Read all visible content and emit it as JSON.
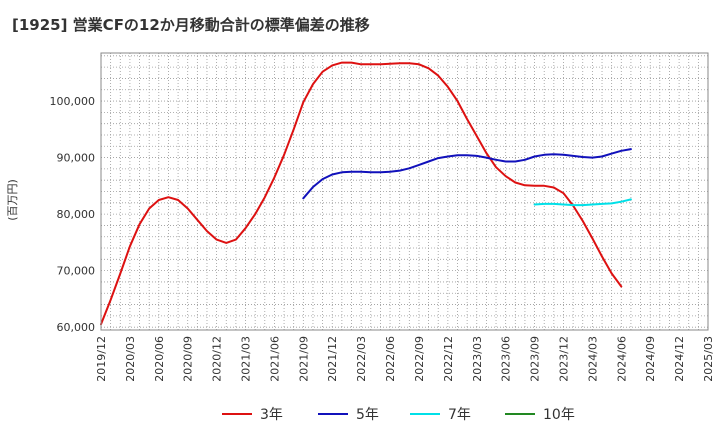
{
  "chart_data": {
    "type": "line",
    "title": "[1925]  営業CFの12か月移動合計の標準偏差の推移",
    "ylabel": "(百万円)",
    "xlabel": "",
    "ylim": [
      59500,
      108500
    ],
    "yticks": [
      60000,
      70000,
      80000,
      90000,
      100000
    ],
    "ytick_labels": [
      "60,000",
      "70,000",
      "80,000",
      "90,000",
      "100,000"
    ],
    "xticks": [
      "2019/12",
      "2020/03",
      "2020/06",
      "2020/09",
      "2020/12",
      "2021/03",
      "2021/06",
      "2021/09",
      "2021/12",
      "2022/03",
      "2022/06",
      "2022/09",
      "2022/12",
      "2023/03",
      "2023/06",
      "2023/09",
      "2023/12",
      "2024/03",
      "2024/06",
      "2024/09",
      "2024/12",
      "2025/03"
    ],
    "grid": true,
    "legend_position": "bottom",
    "series": [
      {
        "name": "3年",
        "color": "#dd1111",
        "values": [
          [
            0,
            60500
          ],
          [
            1,
            64800
          ],
          [
            2,
            69500
          ],
          [
            3,
            74300
          ],
          [
            4,
            78200
          ],
          [
            5,
            81000
          ],
          [
            6,
            82500
          ],
          [
            7,
            83000
          ],
          [
            8,
            82500
          ],
          [
            9,
            81000
          ],
          [
            10,
            79000
          ],
          [
            11,
            77000
          ],
          [
            12,
            75500
          ],
          [
            13,
            74900
          ],
          [
            14,
            75500
          ],
          [
            15,
            77500
          ],
          [
            16,
            80000
          ],
          [
            17,
            83000
          ],
          [
            18,
            86500
          ],
          [
            19,
            90500
          ],
          [
            20,
            95000
          ],
          [
            21,
            99800
          ],
          [
            22,
            103000
          ],
          [
            23,
            105200
          ],
          [
            24,
            106300
          ],
          [
            25,
            106800
          ],
          [
            26,
            106800
          ],
          [
            27,
            106500
          ],
          [
            28,
            106500
          ],
          [
            29,
            106500
          ],
          [
            30,
            106600
          ],
          [
            31,
            106700
          ],
          [
            32,
            106700
          ],
          [
            33,
            106500
          ],
          [
            34,
            105800
          ],
          [
            35,
            104500
          ],
          [
            36,
            102500
          ],
          [
            37,
            100000
          ],
          [
            38,
            96800
          ],
          [
            39,
            93800
          ],
          [
            40,
            90800
          ],
          [
            41,
            88300
          ],
          [
            42,
            86700
          ],
          [
            43,
            85600
          ],
          [
            44,
            85100
          ],
          [
            45,
            85000
          ],
          [
            46,
            85000
          ],
          [
            47,
            84700
          ],
          [
            48,
            83700
          ],
          [
            49,
            81500
          ],
          [
            50,
            78800
          ],
          [
            51,
            75700
          ],
          [
            52,
            72500
          ],
          [
            53,
            69500
          ],
          [
            54,
            67200
          ]
        ]
      },
      {
        "name": "5年",
        "color": "#1111bb",
        "values": [
          [
            21,
            82800
          ],
          [
            22,
            84800
          ],
          [
            23,
            86200
          ],
          [
            24,
            87000
          ],
          [
            25,
            87400
          ],
          [
            26,
            87500
          ],
          [
            27,
            87500
          ],
          [
            28,
            87400
          ],
          [
            29,
            87400
          ],
          [
            30,
            87500
          ],
          [
            31,
            87700
          ],
          [
            32,
            88100
          ],
          [
            33,
            88700
          ],
          [
            34,
            89300
          ],
          [
            35,
            89900
          ],
          [
            36,
            90200
          ],
          [
            37,
            90400
          ],
          [
            38,
            90400
          ],
          [
            39,
            90300
          ],
          [
            40,
            90000
          ],
          [
            41,
            89600
          ],
          [
            42,
            89300
          ],
          [
            43,
            89300
          ],
          [
            44,
            89600
          ],
          [
            45,
            90200
          ],
          [
            46,
            90500
          ],
          [
            47,
            90600
          ],
          [
            48,
            90500
          ],
          [
            49,
            90300
          ],
          [
            50,
            90100
          ],
          [
            51,
            90000
          ],
          [
            52,
            90200
          ],
          [
            53,
            90700
          ],
          [
            54,
            91200
          ],
          [
            55,
            91500
          ]
        ]
      },
      {
        "name": "7年",
        "color": "#00e0e8",
        "values": [
          [
            45,
            81700
          ],
          [
            46,
            81800
          ],
          [
            47,
            81800
          ],
          [
            48,
            81700
          ],
          [
            49,
            81600
          ],
          [
            50,
            81600
          ],
          [
            51,
            81700
          ],
          [
            52,
            81800
          ],
          [
            53,
            81900
          ],
          [
            54,
            82200
          ],
          [
            55,
            82600
          ]
        ]
      },
      {
        "name": "10年",
        "color": "#228822",
        "values": []
      }
    ]
  }
}
